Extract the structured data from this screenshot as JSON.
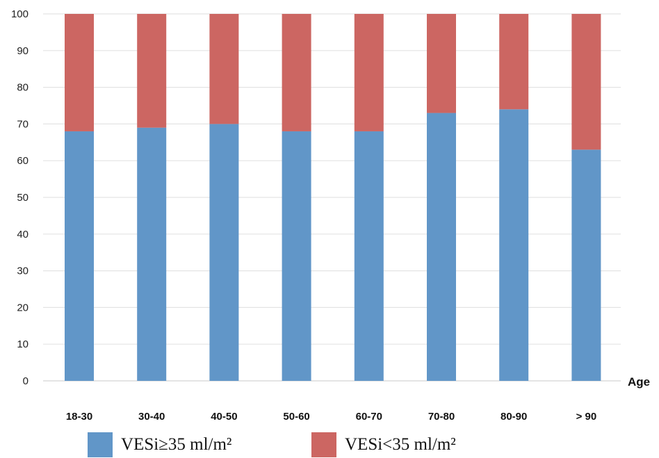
{
  "chart_data": {
    "type": "bar",
    "stacked": true,
    "categories": [
      "18-30",
      "30-40",
      "40-50",
      "50-60",
      "60-70",
      "70-80",
      "80-90",
      "> 90"
    ],
    "series": [
      {
        "name": "VESi≥35 ml/m²",
        "color": "#6196c8",
        "values": [
          68,
          69,
          70,
          68,
          68,
          73,
          74,
          63
        ]
      },
      {
        "name": "VESi<35 ml/m²",
        "color": "#cc6662",
        "values": [
          32,
          31,
          30,
          32,
          32,
          27,
          26,
          37
        ]
      }
    ],
    "xlabel": "Age",
    "ylabel": "",
    "ylim": [
      0,
      100
    ],
    "yticks": [
      0,
      10,
      20,
      30,
      40,
      50,
      60,
      70,
      80,
      90,
      100
    ],
    "grid": true,
    "legend_position": "bottom"
  }
}
